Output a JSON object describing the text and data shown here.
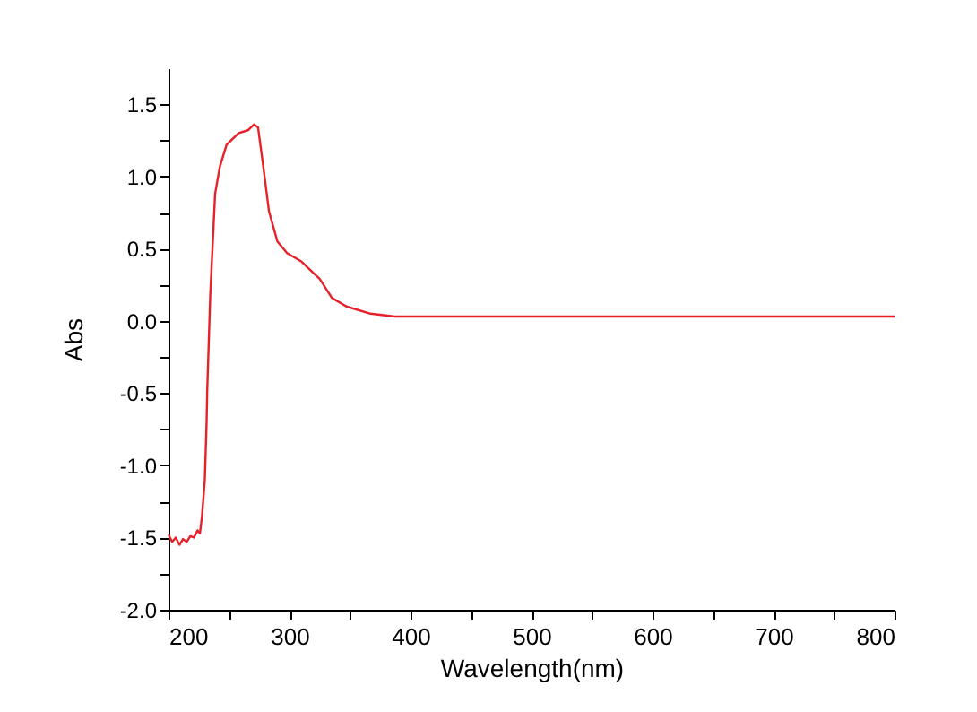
{
  "chart_data": {
    "type": "line",
    "xlabel": "Wavelength(nm)",
    "ylabel": "Abs",
    "x": [
      200,
      203,
      206,
      209,
      212,
      215,
      218,
      221,
      224,
      226,
      227.7,
      230,
      231.5,
      232,
      234.5,
      238.5,
      242.5,
      248,
      258,
      265.6,
      270.6,
      274,
      278,
      283,
      290,
      298,
      310,
      315,
      325,
      335,
      347,
      367,
      387,
      450,
      500,
      600,
      700,
      800
    ],
    "series": [
      {
        "color": "#e8202a",
        "values": [
          -1.48,
          -1.53,
          -1.5,
          -1.55,
          -1.51,
          -1.53,
          -1.49,
          -1.5,
          -1.45,
          -1.47,
          -1.35,
          -1.1,
          -0.7,
          -0.48,
          0.18,
          0.88,
          1.07,
          1.22,
          1.3,
          1.32,
          1.36,
          1.34,
          1.09,
          0.76,
          0.55,
          0.47,
          0.41,
          0.37,
          0.29,
          0.16,
          0.1,
          0.05,
          0.03,
          0.03,
          0.03,
          0.03,
          0.03,
          0.03
        ]
      }
    ],
    "xlim": [
      200,
      800
    ],
    "xticks": [
      200,
      {
        "value": 250,
        "label": null
      },
      300,
      {
        "value": 350,
        "label": null
      },
      400,
      {
        "value": 450,
        "label": null
      },
      500,
      {
        "value": 550,
        "label": null
      },
      600,
      {
        "value": 650,
        "label": null
      },
      700,
      {
        "value": 750,
        "label": null
      },
      800
    ],
    "ylim": [
      -2.0,
      1.75
    ],
    "yticks": [
      {
        "value": -2.0,
        "label": "-2.0"
      },
      {
        "value": -1.75,
        "label": null
      },
      {
        "value": -1.5,
        "label": "-1.5"
      },
      {
        "value": -1.25,
        "label": null
      },
      {
        "value": -1.0,
        "label": "-1.0"
      },
      {
        "value": -0.75,
        "label": null
      },
      {
        "value": -0.5,
        "label": "-0.5"
      },
      {
        "value": -0.25,
        "label": null
      },
      {
        "value": 0.0,
        "label": "0.0"
      },
      {
        "value": 0.25,
        "label": null
      },
      {
        "value": 0.5,
        "label": "0.5"
      },
      {
        "value": 0.75,
        "label": null
      },
      {
        "value": 1.0,
        "label": "1.0"
      },
      {
        "value": 1.25,
        "label": null
      },
      {
        "value": 1.5,
        "label": "1.5"
      }
    ],
    "grid": false,
    "line_style": "solid",
    "marker": "none"
  }
}
